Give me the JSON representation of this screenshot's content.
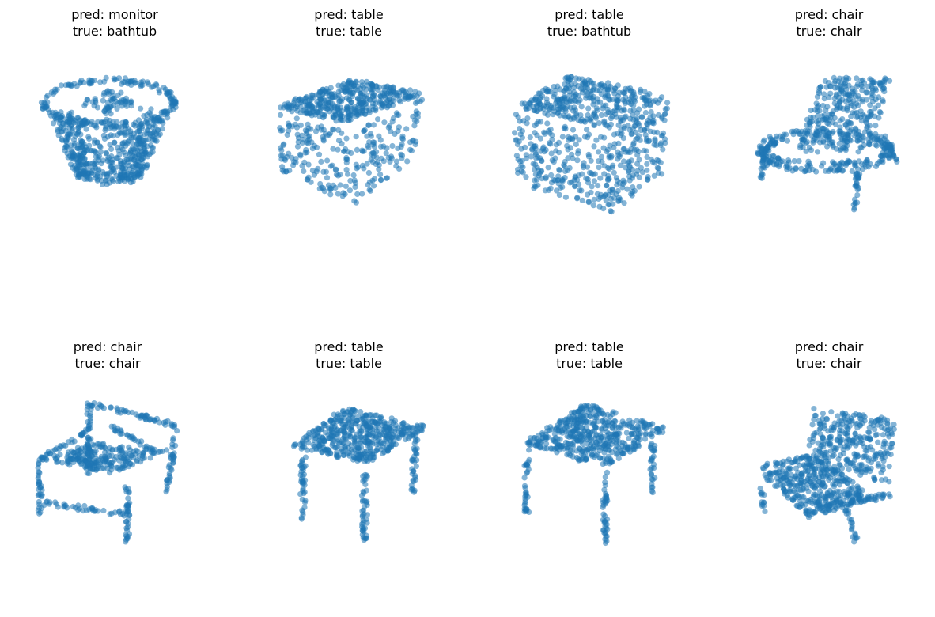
{
  "figure": {
    "point_color": "#1f77b4",
    "panels": [
      {
        "pred_label": "pred: monitor",
        "true_label": "true: bathtub",
        "shape": "tub"
      },
      {
        "pred_label": "pred: table",
        "true_label": "true: table",
        "shape": "box-table"
      },
      {
        "pred_label": "pred: table",
        "true_label": "true: bathtub",
        "shape": "cube"
      },
      {
        "pred_label": "pred: chair",
        "true_label": "true: chair",
        "shape": "chair-tilted"
      },
      {
        "pred_label": "pred: chair",
        "true_label": "true: chair",
        "shape": "chair-arms"
      },
      {
        "pred_label": "pred: table",
        "true_label": "true: table",
        "shape": "table-legs"
      },
      {
        "pred_label": "pred: table",
        "true_label": "true: table",
        "shape": "table-legs-wide"
      },
      {
        "pred_label": "pred: chair",
        "true_label": "true: chair",
        "shape": "armchair"
      }
    ]
  },
  "chart_data": {
    "type": "scatter",
    "grid": false,
    "axes_visible": false,
    "subplots": [
      {
        "title": "pred: monitor\n true: bathtub"
      },
      {
        "title": "pred: table\n true: table"
      },
      {
        "title": "pred: table\n true: bathtub"
      },
      {
        "title": "pred: chair\n true: chair"
      },
      {
        "title": "pred: chair\n true: chair"
      },
      {
        "title": "pred: table\n true: table"
      },
      {
        "title": "pred: table\n true: table"
      },
      {
        "title": "pred: chair\n true: chair"
      }
    ]
  }
}
